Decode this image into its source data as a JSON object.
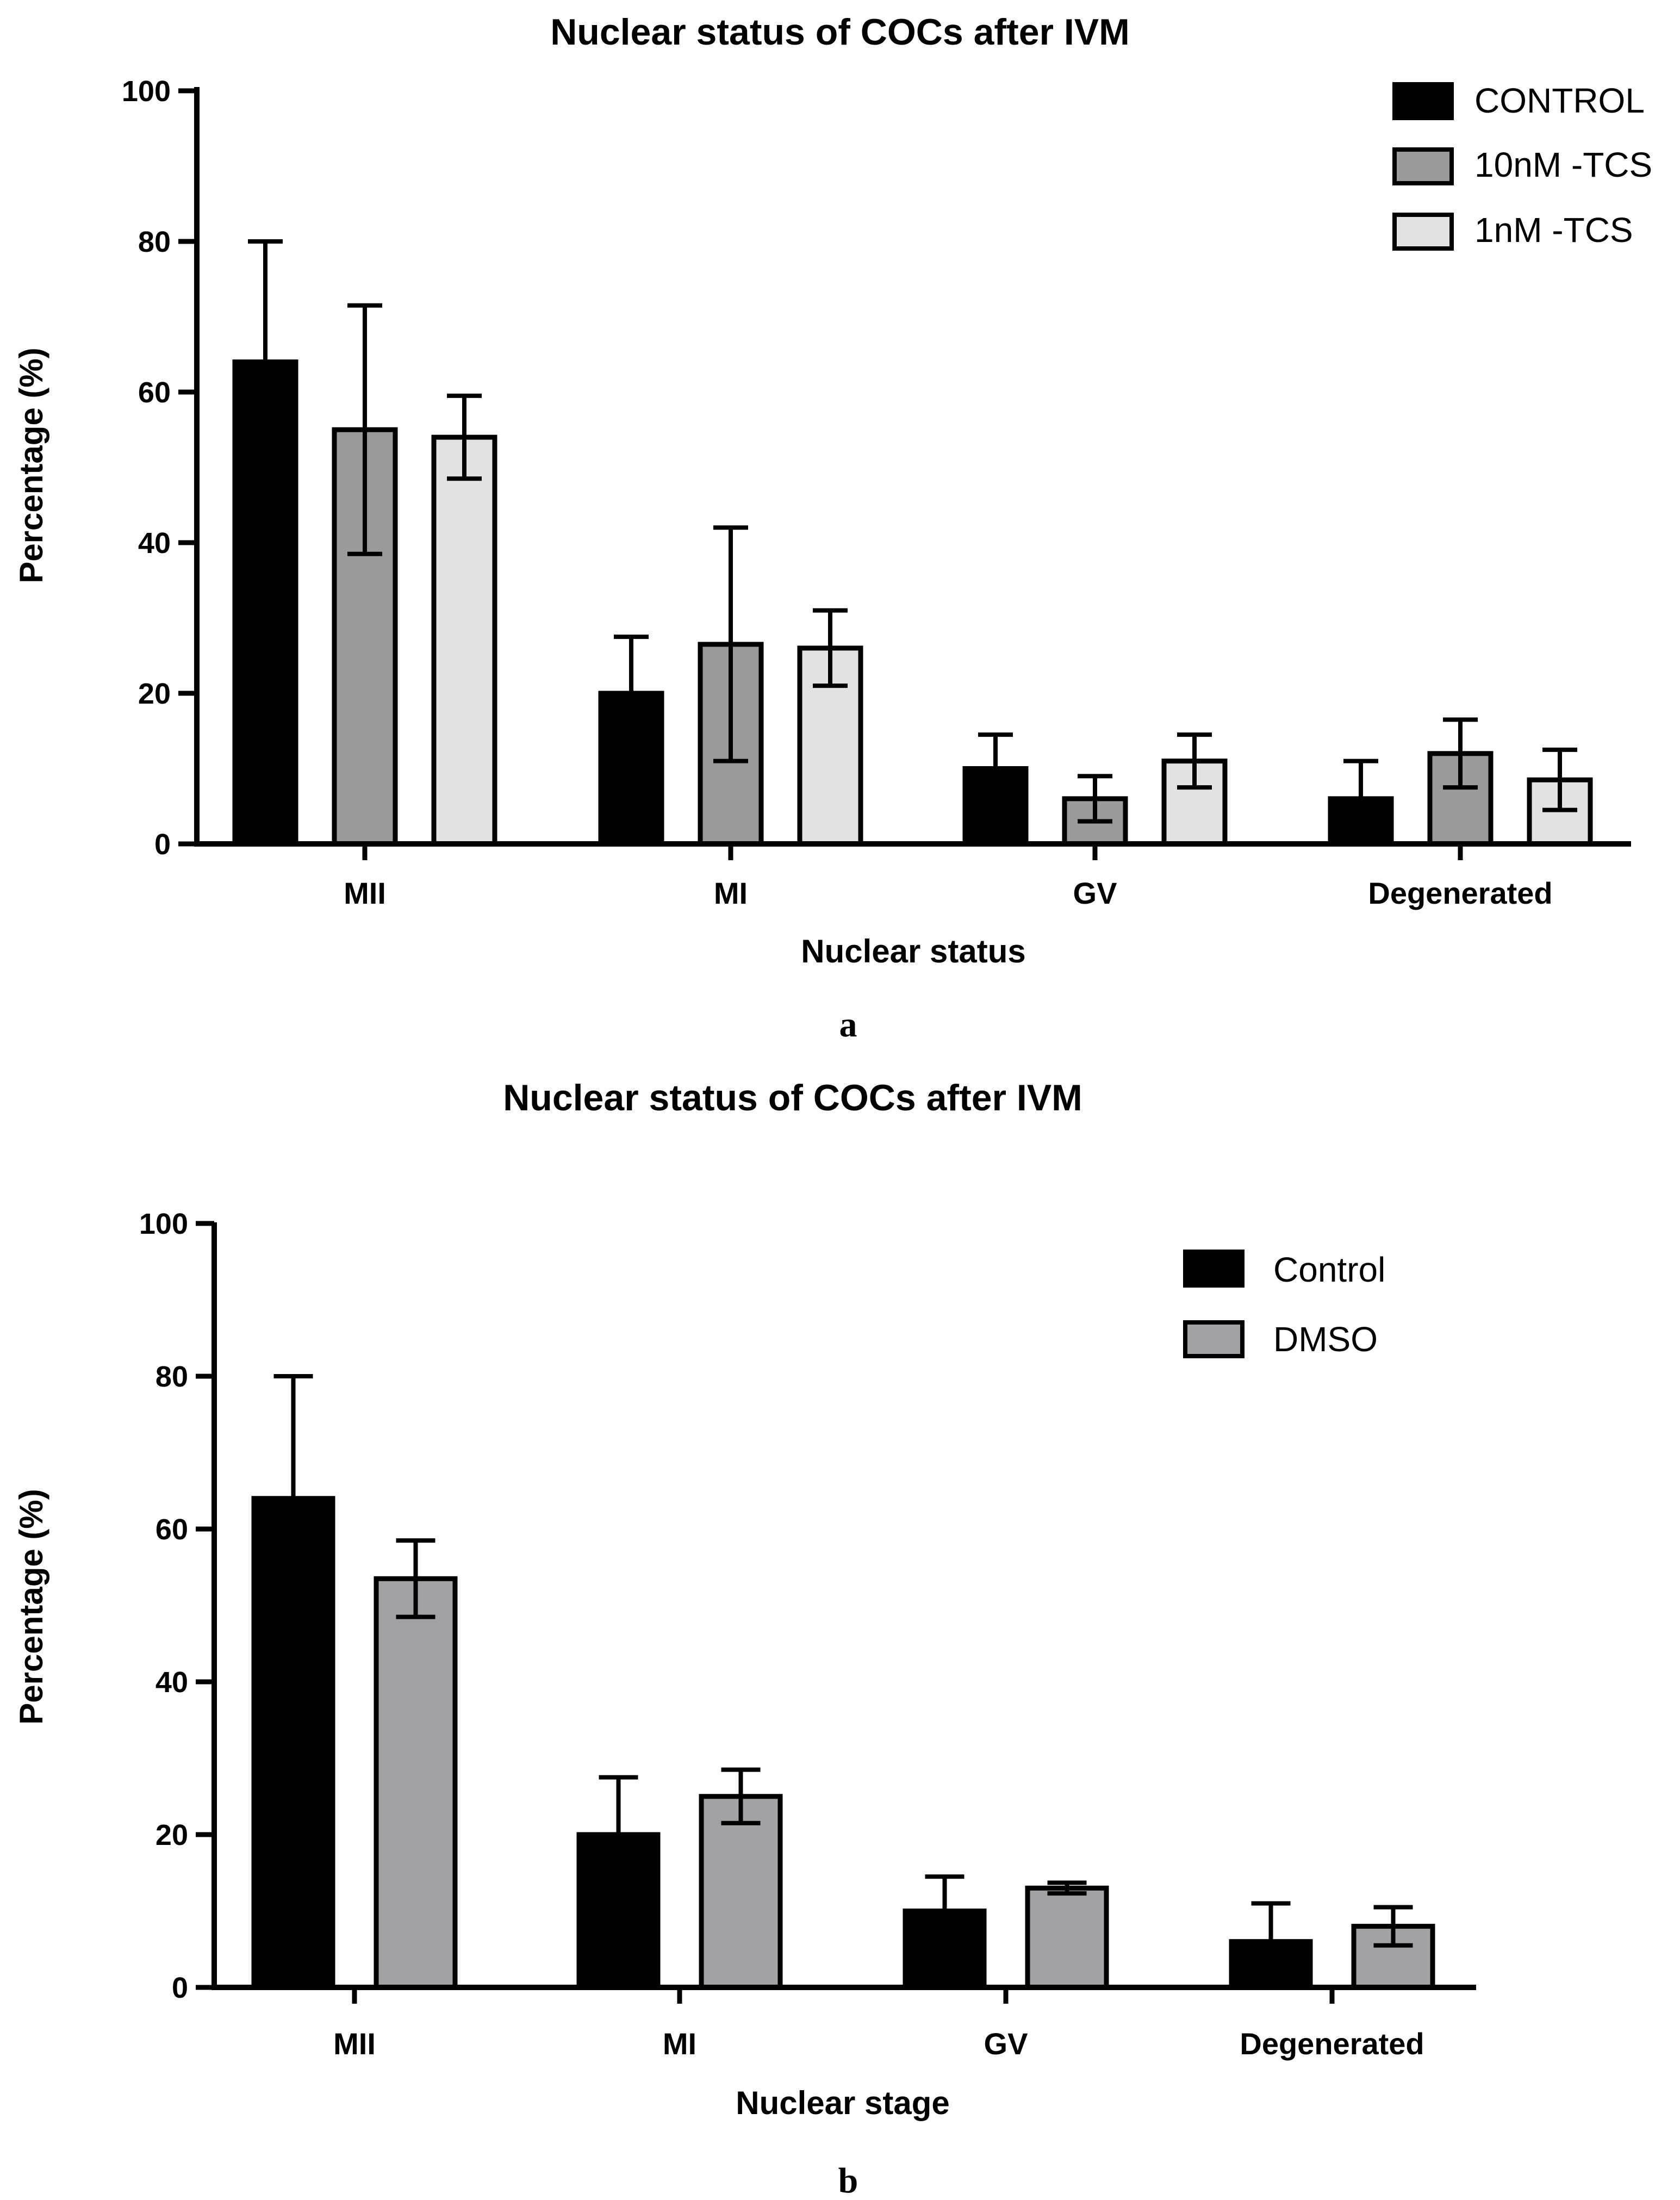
{
  "chart_data": [
    {
      "type": "bar",
      "panel": "a",
      "title": "Nuclear status of COCs after IVM",
      "xlabel": "Nuclear status",
      "ylabel": "Percentage (%)",
      "ylim": [
        0,
        100
      ],
      "yticks": [
        0,
        20,
        40,
        60,
        80,
        100
      ],
      "categories": [
        "MII",
        "MI",
        "GV",
        "Degenerated"
      ],
      "legend_position": "top-right",
      "series": [
        {
          "name": "CONTROL",
          "color": "#000000",
          "values": [
            64,
            20,
            10,
            6
          ],
          "errors": [
            16,
            7.5,
            4.5,
            5
          ]
        },
        {
          "name": "10nM -TCS",
          "color": "#9a9a9a",
          "values": [
            55,
            26.5,
            6,
            12
          ],
          "errors": [
            16.5,
            15.5,
            3,
            4.5
          ]
        },
        {
          "name": "1nM -TCS",
          "color": "#e2e2e2",
          "values": [
            54,
            26,
            11,
            8.5
          ],
          "errors": [
            5.5,
            5,
            3.5,
            4
          ]
        }
      ]
    },
    {
      "type": "bar",
      "panel": "b",
      "title": "Nuclear status of COCs after IVM",
      "xlabel": "Nuclear stage",
      "ylabel": "Percentage (%)",
      "ylim": [
        0,
        100
      ],
      "yticks": [
        0,
        20,
        40,
        60,
        80,
        100
      ],
      "categories": [
        "MII",
        "MI",
        "GV",
        "Degenerated"
      ],
      "legend_position": "top-right",
      "series": [
        {
          "name": "Control",
          "color": "#000000",
          "values": [
            64,
            20,
            10,
            6
          ],
          "errors": [
            16,
            7.5,
            4.5,
            5
          ]
        },
        {
          "name": "DMSO",
          "color": "#a2a1a6",
          "values": [
            53.5,
            25,
            13,
            8
          ],
          "errors": [
            5,
            3.5,
            0.7,
            2.5
          ]
        }
      ]
    }
  ]
}
